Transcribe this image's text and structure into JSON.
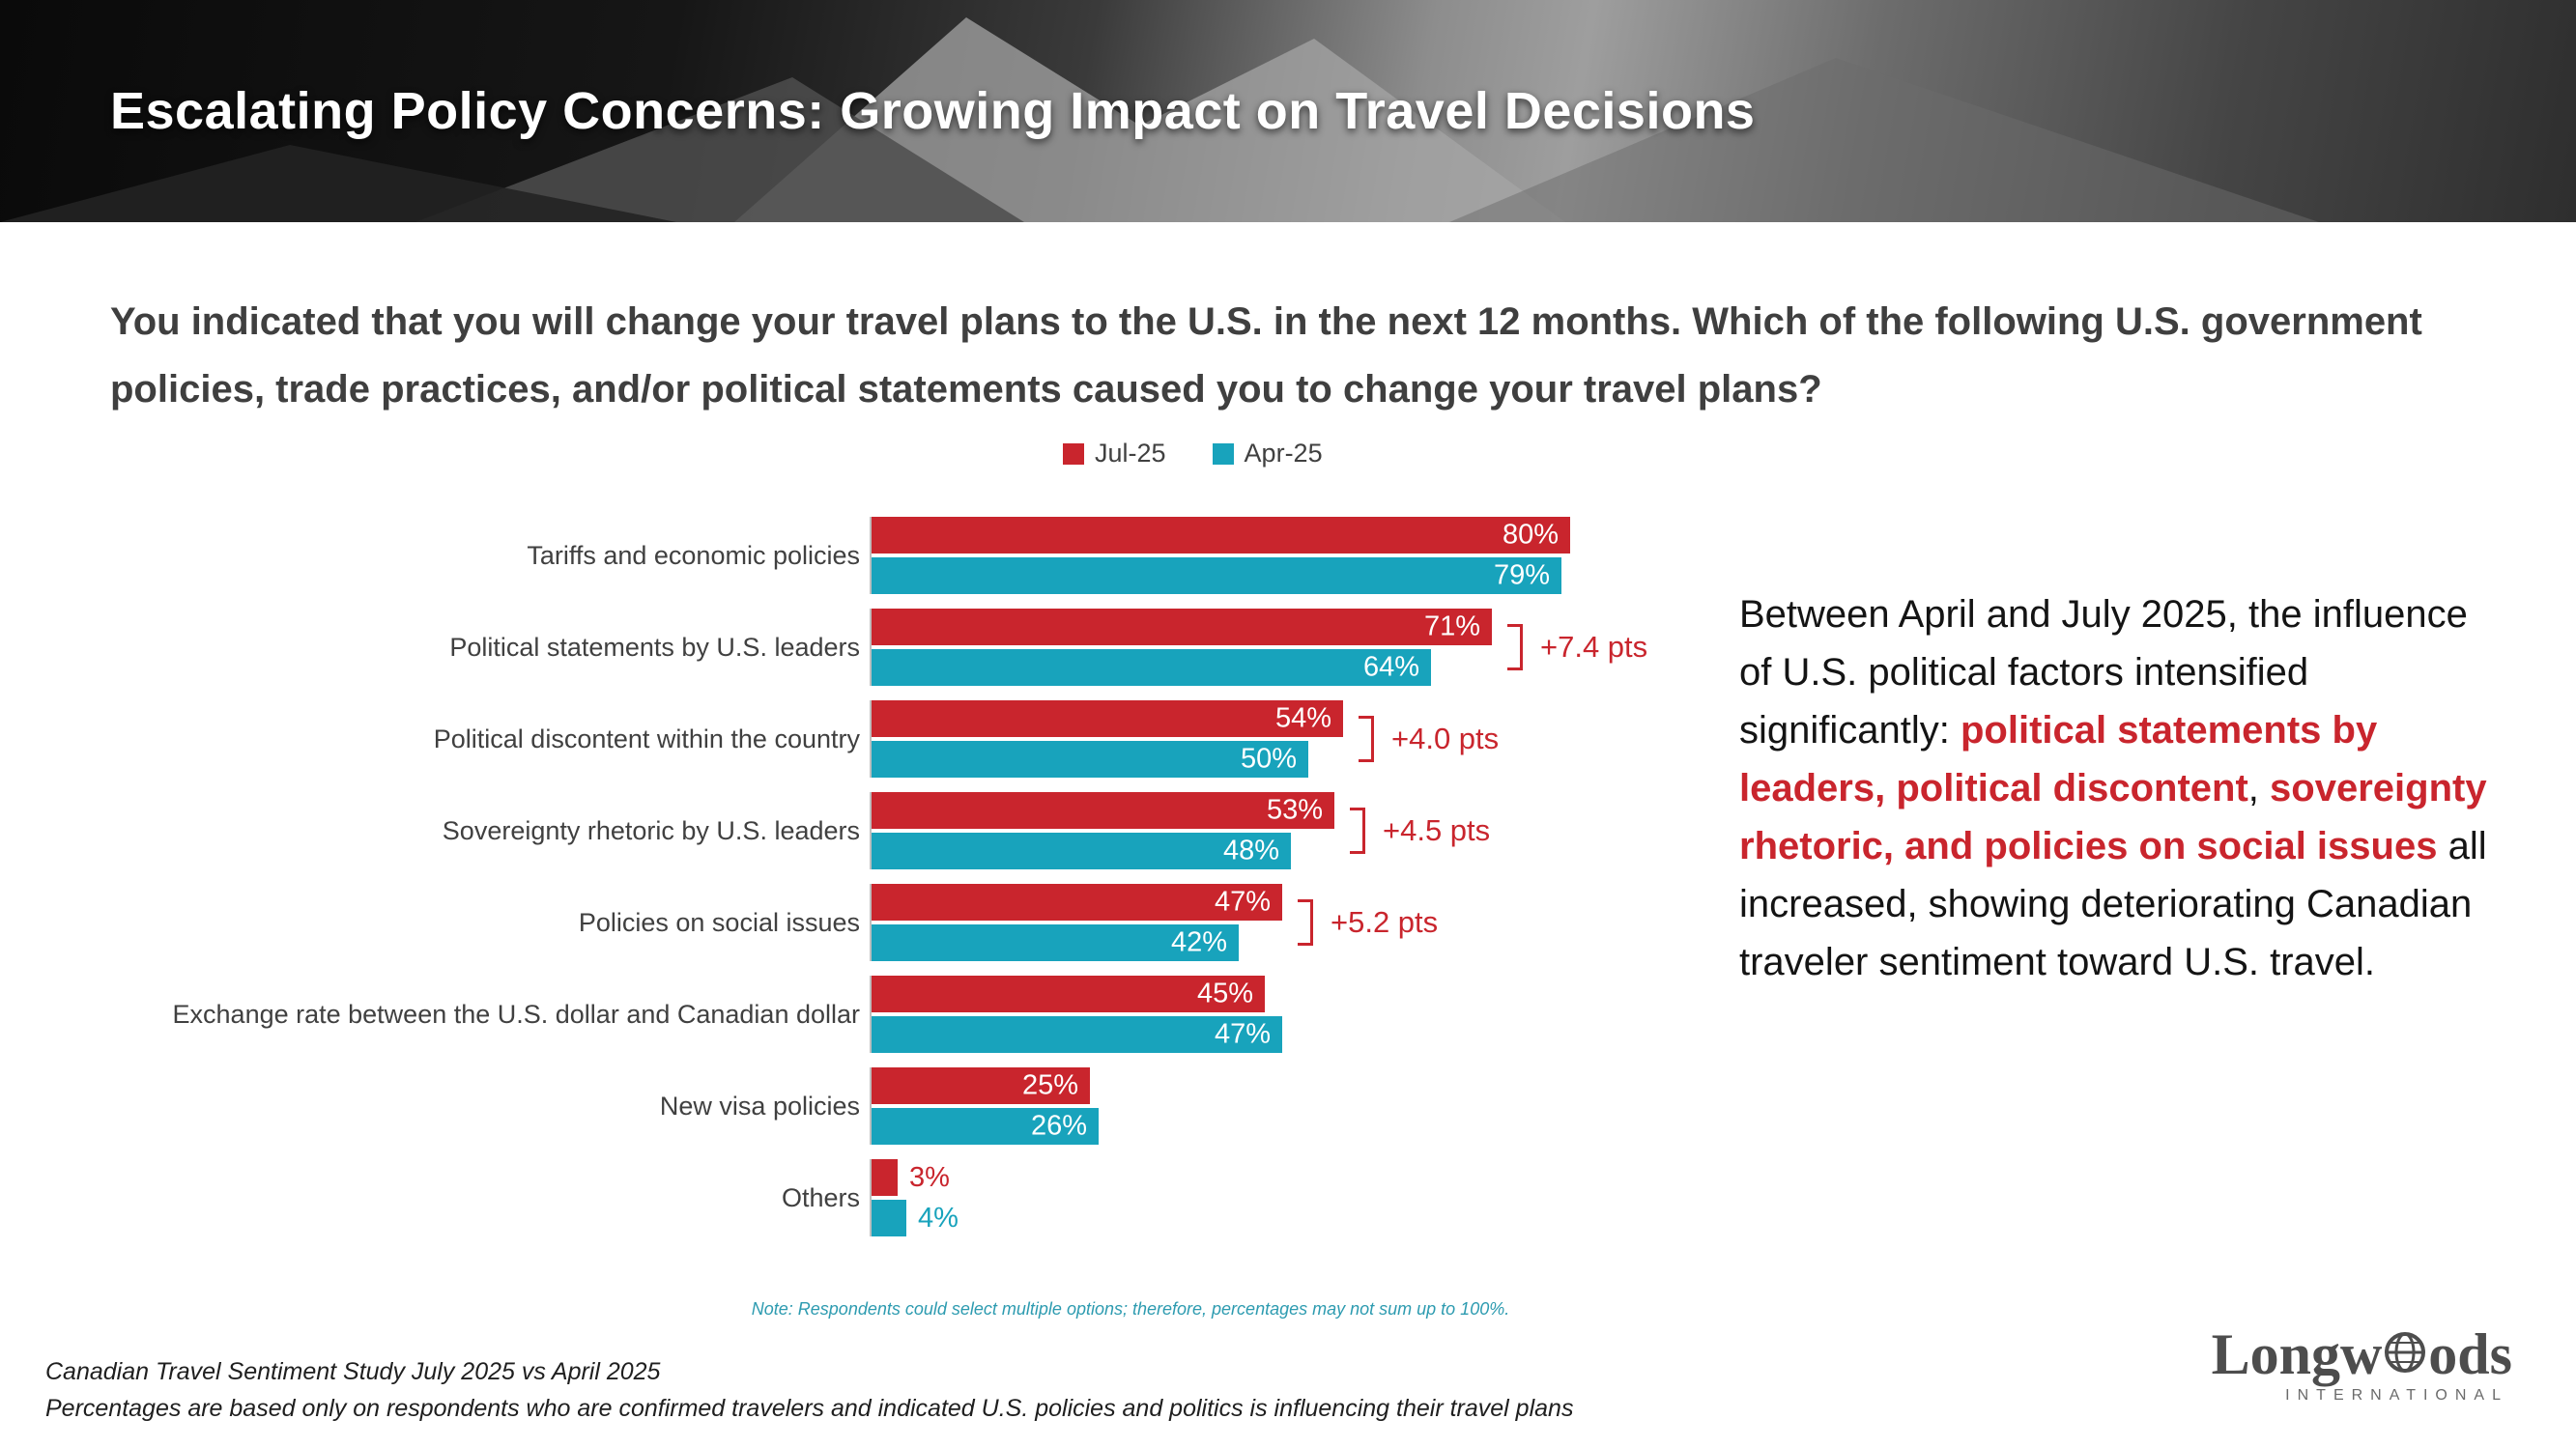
{
  "header": {
    "title": "Escalating Policy Concerns: Growing Impact on Travel Decisions"
  },
  "question": "You indicated that you will change your travel plans to the U.S. in the next 12 months. Which of the following U.S. government policies, trade practices, and/or political statements caused you to change your travel plans?",
  "chart_data": {
    "type": "bar",
    "orientation": "horizontal",
    "categories": [
      "Tariffs and economic policies",
      "Political statements by U.S. leaders",
      "Political discontent within the country",
      "Sovereignty rhetoric by U.S. leaders",
      "Policies on social issues",
      "Exchange rate between the U.S. dollar and Canadian dollar",
      "New visa policies",
      "Others"
    ],
    "series": [
      {
        "name": "Jul-25",
        "color": "#C9252D",
        "values": [
          80,
          71,
          54,
          53,
          47,
          45,
          25,
          3
        ]
      },
      {
        "name": "Apr-25",
        "color": "#18A3BC",
        "values": [
          79,
          64,
          50,
          48,
          42,
          47,
          26,
          4
        ]
      }
    ],
    "deltas": [
      null,
      "+7.4 pts",
      "+4.0 pts",
      "+4.5 pts",
      "+5.2 pts",
      null,
      null,
      null
    ],
    "delta_color": "#C9252D",
    "value_suffix": "%",
    "xlim": [
      0,
      100
    ],
    "legend_position": "top",
    "grid": false
  },
  "commentary": {
    "emphasis_color": "#C9252D",
    "segments": [
      {
        "text": "Between April and July 2025, the influence of U.S. political factors intensified significantly: ",
        "emphasis": false
      },
      {
        "text": "political statements by leaders, political discontent",
        "emphasis": true
      },
      {
        "text": ", ",
        "emphasis": false
      },
      {
        "text": "sovereignty rhetoric, and policies on social issues",
        "emphasis": true
      },
      {
        "text": " all increased, showing deteriorating Canadian traveler sentiment toward U.S. travel.",
        "emphasis": false
      }
    ]
  },
  "note": "Note: Respondents could select multiple options; therefore, percentages may not sum up to 100%.",
  "footer": {
    "line1": "Canadian Travel Sentiment Study July 2025 vs April 2025",
    "line2": "Percentages are based only on respondents who are confirmed travelers and indicated U.S. policies and politics is influencing their travel plans"
  },
  "logo": {
    "name_prefix": "Longw",
    "name_suffix": "ods",
    "subtitle": "INTERNATIONAL"
  }
}
